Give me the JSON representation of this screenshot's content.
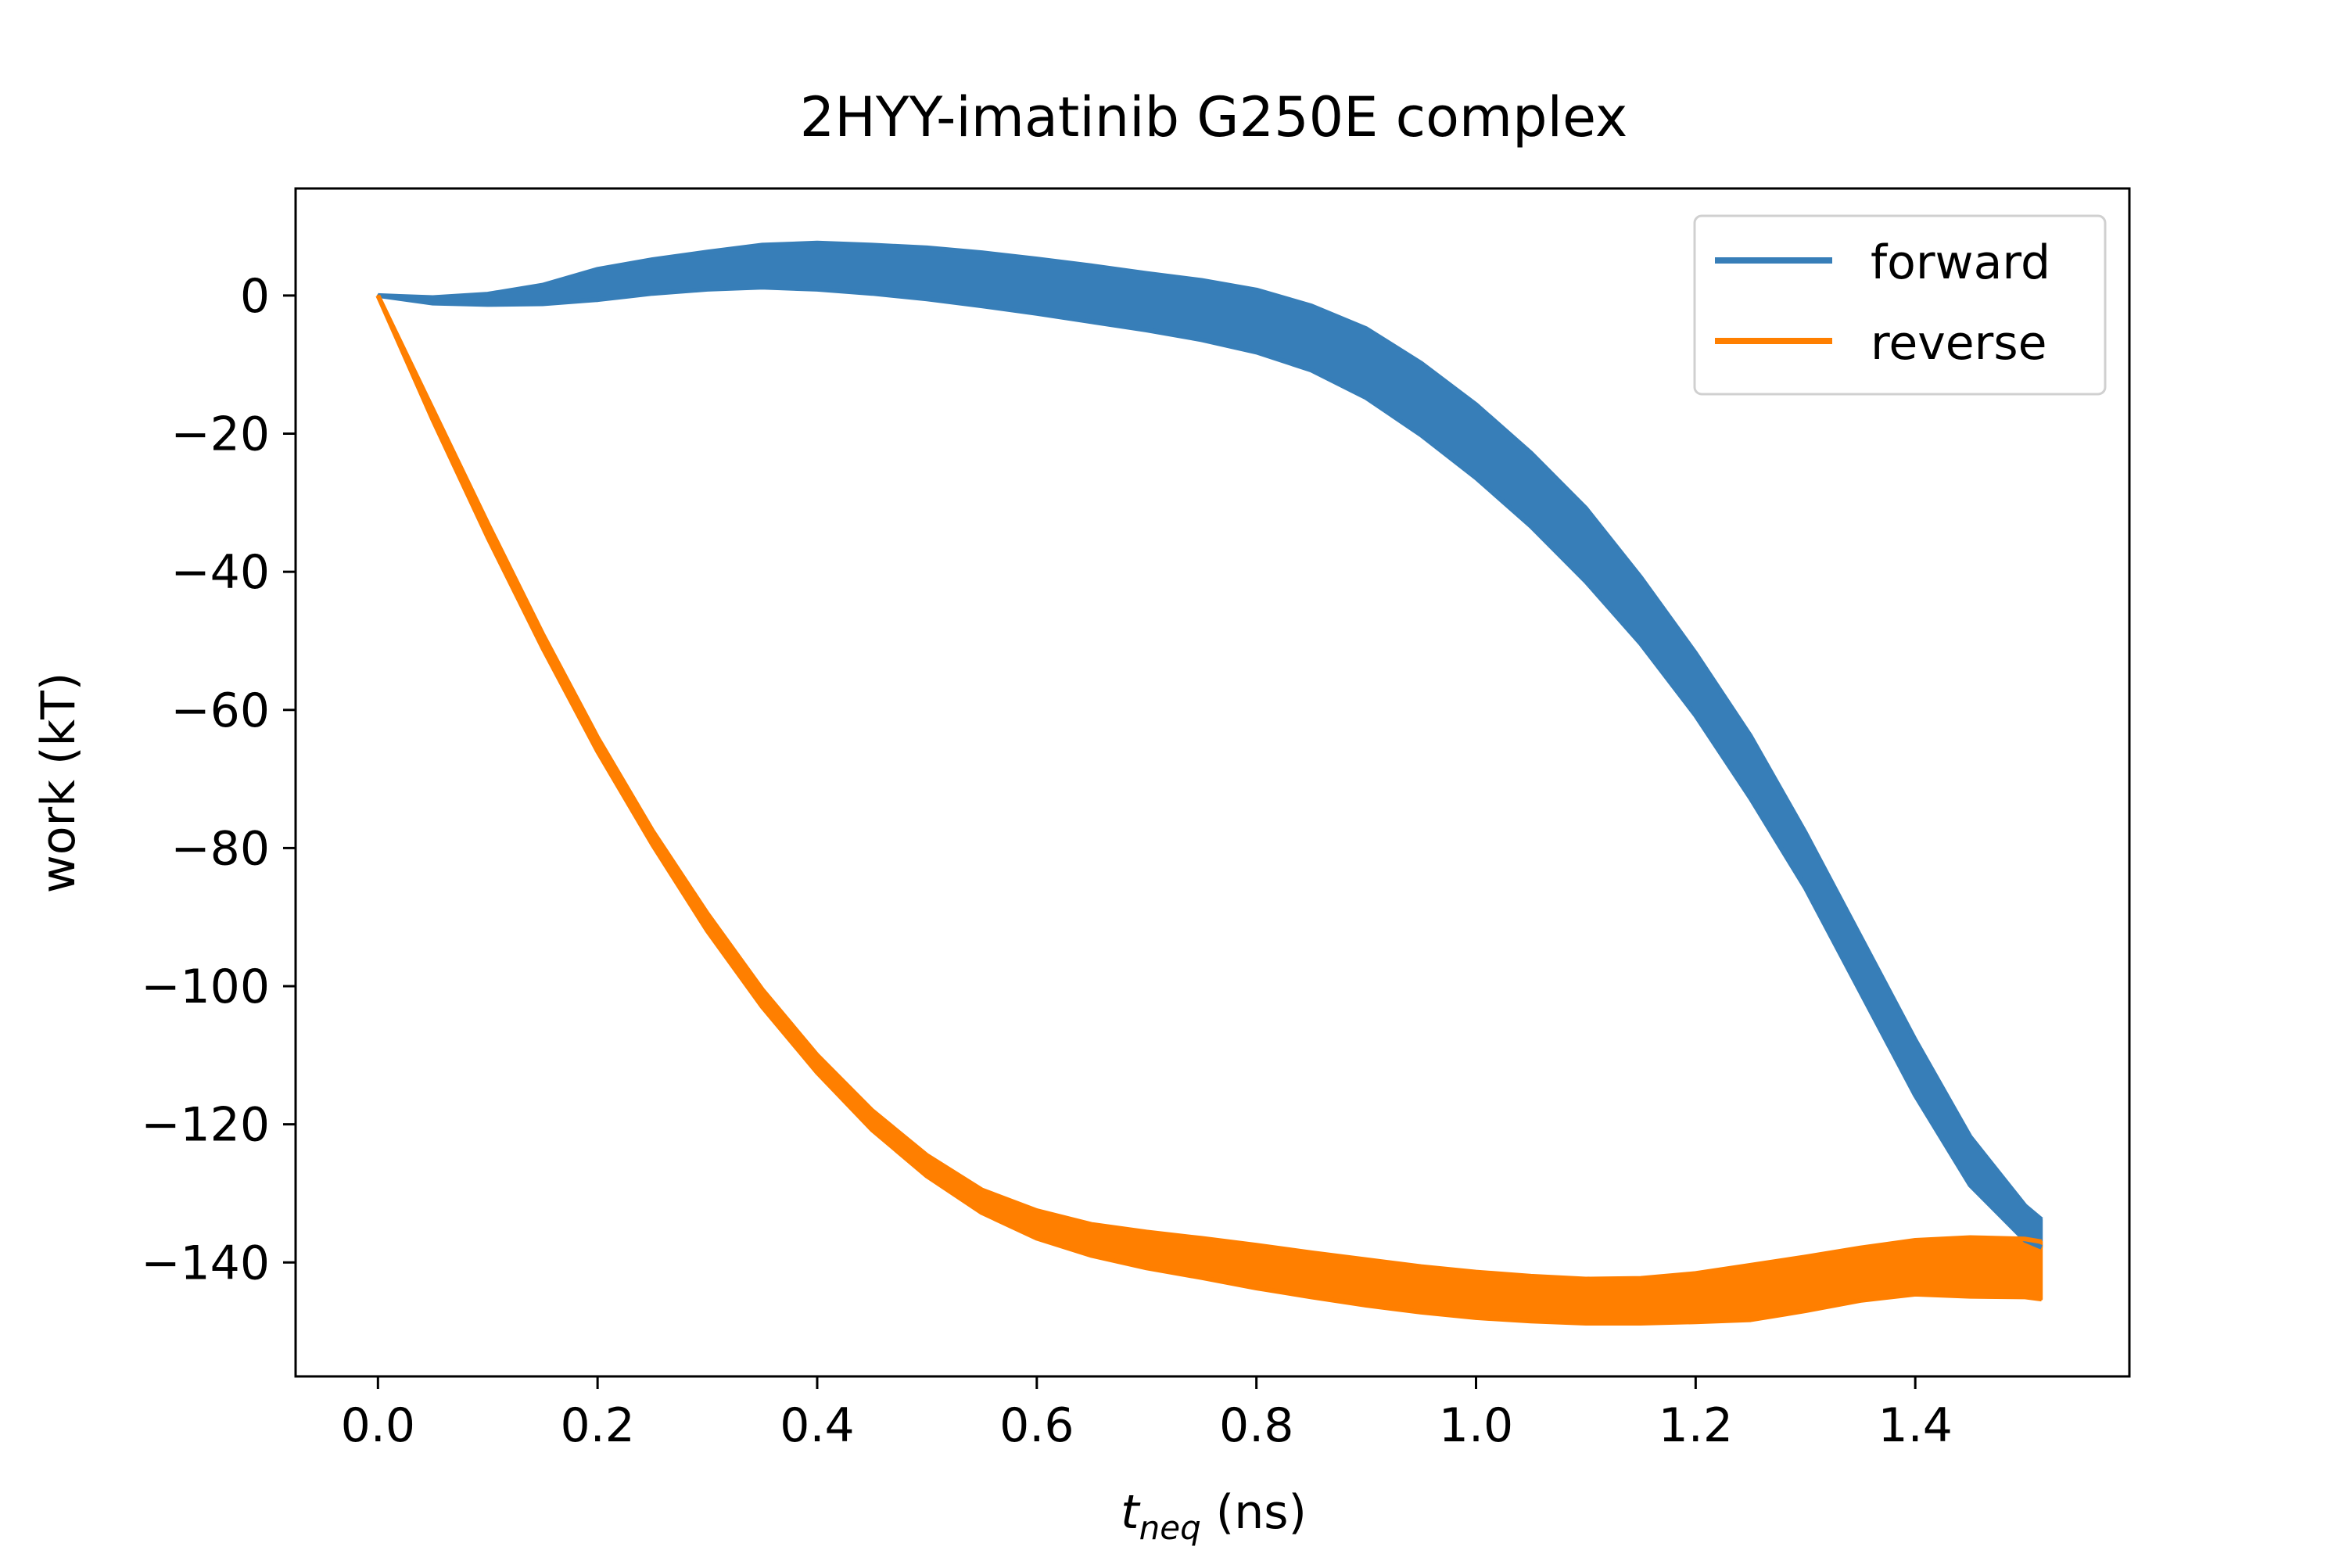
{
  "chart_data": {
    "type": "line",
    "title": "2HYY-imatinib G250E complex",
    "xlabel": {
      "main": "t",
      "sub": "neq",
      "unit": " (ns)"
    },
    "ylabel": "work (kT)",
    "xlim": [
      -0.075,
      1.595
    ],
    "ylim": [
      -156.5,
      15.5
    ],
    "x_ticks": [
      0.0,
      0.2,
      0.4,
      0.6,
      0.8,
      1.0,
      1.2,
      1.4
    ],
    "x_tick_labels": [
      "0.0",
      "0.2",
      "0.4",
      "0.6",
      "0.8",
      "1.0",
      "1.2",
      "1.4"
    ],
    "y_ticks": [
      0,
      -20,
      -40,
      -60,
      -80,
      -100,
      -120,
      -140
    ],
    "y_tick_labels": [
      "0",
      "−20",
      "−40",
      "−60",
      "−80",
      "−100",
      "−120",
      "−140"
    ],
    "legend_position": "top-right",
    "grid": false,
    "series": [
      {
        "name": "forward",
        "color": "#377eb8",
        "x": [
          0.0,
          0.05,
          0.1,
          0.15,
          0.2,
          0.25,
          0.3,
          0.35,
          0.4,
          0.45,
          0.5,
          0.55,
          0.6,
          0.65,
          0.7,
          0.75,
          0.8,
          0.85,
          0.9,
          0.95,
          1.0,
          1.05,
          1.1,
          1.15,
          1.2,
          1.25,
          1.3,
          1.35,
          1.4,
          1.45,
          1.5,
          1.515
        ],
        "upper": [
          0.0,
          -0.3,
          0.2,
          1.5,
          3.8,
          5.2,
          6.3,
          7.3,
          7.6,
          7.3,
          6.9,
          6.2,
          5.3,
          4.3,
          3.2,
          2.2,
          0.8,
          -1.5,
          -4.8,
          -9.8,
          -15.8,
          -22.8,
          -30.8,
          -40.8,
          -51.8,
          -63.8,
          -77.8,
          -92.8,
          -107.8,
          -121.8,
          -131.8,
          -133.8
        ],
        "lower": [
          0.0,
          -1.1,
          -1.3,
          -1.2,
          -0.6,
          0.3,
          0.9,
          1.2,
          0.9,
          0.3,
          -0.5,
          -1.5,
          -2.6,
          -3.8,
          -5.0,
          -6.4,
          -8.2,
          -10.8,
          -14.8,
          -20.2,
          -26.4,
          -33.4,
          -41.4,
          -50.4,
          -60.8,
          -72.8,
          -85.8,
          -100.8,
          -115.8,
          -128.8,
          -136.8,
          -137.8
        ]
      },
      {
        "name": "reverse",
        "color": "#ff7f00",
        "x": [
          0.0,
          0.05,
          0.1,
          0.15,
          0.2,
          0.25,
          0.3,
          0.35,
          0.4,
          0.45,
          0.5,
          0.55,
          0.6,
          0.65,
          0.7,
          0.75,
          0.8,
          0.85,
          0.9,
          0.95,
          1.0,
          1.05,
          1.1,
          1.15,
          1.2,
          1.25,
          1.3,
          1.35,
          1.4,
          1.45,
          1.5,
          1.515
        ],
        "upper": [
          0.0,
          -16.5,
          -33.0,
          -49.0,
          -64.0,
          -77.5,
          -89.5,
          -100.5,
          -110.0,
          -118.0,
          -124.5,
          -129.5,
          -132.5,
          -134.5,
          -135.6,
          -136.5,
          -137.5,
          -138.6,
          -139.6,
          -140.6,
          -141.4,
          -142.0,
          -142.4,
          -142.3,
          -141.6,
          -140.4,
          -139.2,
          -137.9,
          -136.8,
          -136.4,
          -136.6,
          -137.0
        ],
        "lower": [
          0.0,
          -18.0,
          -35.0,
          -51.0,
          -66.0,
          -79.5,
          -92.0,
          -103.0,
          -112.5,
          -120.8,
          -127.5,
          -132.8,
          -136.5,
          -139.0,
          -140.8,
          -142.2,
          -143.7,
          -145.0,
          -146.2,
          -147.2,
          -148.0,
          -148.5,
          -148.8,
          -148.8,
          -148.6,
          -148.3,
          -147.0,
          -145.5,
          -144.6,
          -144.9,
          -145.0,
          -145.3
        ]
      }
    ]
  }
}
